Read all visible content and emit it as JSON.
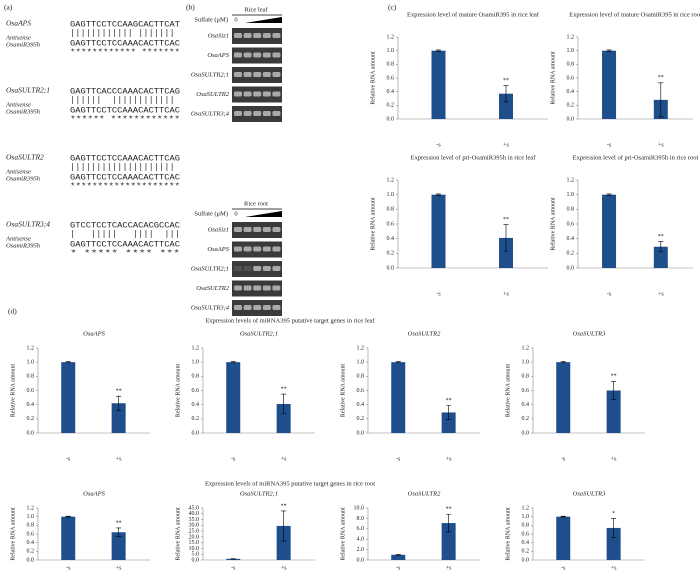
{
  "panel_a": {
    "label": "(a)",
    "alignments": [
      {
        "gene": "OsaAPS",
        "target": "GAGTTCCTCCAAGCACTTCAT",
        "probe_label_1": "Antisense",
        "probe_label_2": "OsamiR395h",
        "antisense": "GAGTTCCTCCAAACACTTCAC",
        "match": "************ ******* "
      },
      {
        "gene": "OsaSULTR2;1",
        "target": "GAGTTCACCCAAACACTTCAG",
        "probe_label_1": "Antisense",
        "probe_label_2": "OsamiR395h",
        "antisense": "GAGTTCCTCCAAACACTTCAC",
        "match": "******  ************ "
      },
      {
        "gene": "OsaSULTR2",
        "target": "GAGTTCCTCCAAACACTTCAG",
        "probe_label_1": "Antisense",
        "probe_label_2": "OsamiR395h",
        "antisense": "GAGTTCCTCCAAACACTTCAC",
        "match": "******************** "
      },
      {
        "gene": "OsaSULTR3;4",
        "target": "GTCCTCCTCACCACACGCCAC",
        "probe_label_1": "Antisense",
        "probe_label_2": "OsamiR395h",
        "antisense": "GAGTTCCTCCAAACACTTCAC",
        "match": "*   *****   ****  ***"
      }
    ]
  },
  "panel_b": {
    "label": "(b)",
    "leaf": {
      "title": "Rice leaf",
      "sulfate_label": "Sulfate (μM)",
      "zero": "0",
      "genes": [
        "OsaSiz1",
        "OsaAPS",
        "OsaSULTR2;1",
        "OsaSULTR2",
        "OsaSULTR3;4"
      ]
    },
    "root": {
      "title": "Rice root",
      "sulfate_label": "Sulfate (μM)",
      "zero": "0",
      "genes": [
        "OsaSiz1",
        "OsaAPS",
        "OsaSULTR2;1",
        "OsaSULTR2",
        "OsaSULTR3;4"
      ]
    }
  },
  "panel_c": {
    "label": "(c)"
  },
  "panel_d": {
    "label": "(d)",
    "leaf_title": "Expression levels of miRNA395 putative target genes in rice leaf",
    "root_title": "Expression levels of miRNA395 putative target genes in rice root"
  },
  "chart_data": [
    {
      "type": "bar",
      "title": "Expression level of mature OsamiR395 in rice leaf",
      "ylabel": "Relative RNA amount",
      "categories": [
        "-s",
        "+s"
      ],
      "values": [
        1.0,
        0.37
      ],
      "errors": [
        0.01,
        0.12
      ],
      "annotation": "**",
      "color": "#1f4e8c",
      "ylim": [
        0,
        1.2
      ],
      "yticks": [
        {
          "value": 0,
          "label": "0.0"
        },
        {
          "value": 0.2,
          "label": "0.2"
        },
        {
          "value": 0.4,
          "label": "0.4"
        },
        {
          "value": 0.6,
          "label": "0.6"
        },
        {
          "value": 0.8,
          "label": "0.8"
        },
        {
          "value": 1,
          "label": "1.0"
        },
        {
          "value": 1.2,
          "label": "1.2"
        }
      ]
    },
    {
      "type": "bar",
      "title": "Expression level of mature OsamiR395 in rice root",
      "ylabel": "Relative RNA amount",
      "categories": [
        "-s",
        "+s"
      ],
      "values": [
        1.0,
        0.28
      ],
      "errors": [
        0.01,
        0.25
      ],
      "annotation": "**",
      "color": "#1f4e8c",
      "ylim": [
        0,
        1.2
      ],
      "yticks": [
        {
          "value": 0,
          "label": "0.0"
        },
        {
          "value": 0.2,
          "label": "0.2"
        },
        {
          "value": 0.4,
          "label": "0.4"
        },
        {
          "value": 0.6,
          "label": "0.6"
        },
        {
          "value": 0.8,
          "label": "0.8"
        },
        {
          "value": 1,
          "label": "1.0"
        },
        {
          "value": 1.2,
          "label": "1.2"
        }
      ]
    },
    {
      "type": "bar",
      "title": "Expression level of pri-OsamiR395h in rice leaf",
      "ylabel": "Relative RNA amount",
      "categories": [
        "-s",
        "+s"
      ],
      "values": [
        1.0,
        0.41
      ],
      "errors": [
        0.01,
        0.18
      ],
      "annotation": "**",
      "color": "#1f4e8c",
      "ylim": [
        0,
        1.2
      ],
      "yticks": [
        {
          "value": 0,
          "label": "0.0"
        },
        {
          "value": 0.2,
          "label": "0.2"
        },
        {
          "value": 0.4,
          "label": "0.4"
        },
        {
          "value": 0.6,
          "label": "0.6"
        },
        {
          "value": 0.8,
          "label": "0.8"
        },
        {
          "value": 1,
          "label": "1.0"
        },
        {
          "value": 1.2,
          "label": "1.2"
        }
      ]
    },
    {
      "type": "bar",
      "title": "Expression level of pri-OsamiR395h in rice root",
      "ylabel": "Relative RNA amount",
      "categories": [
        "-s",
        "+s"
      ],
      "values": [
        1.0,
        0.29
      ],
      "errors": [
        0.01,
        0.07
      ],
      "annotation": "**",
      "color": "#1f4e8c",
      "ylim": [
        0,
        1.2
      ],
      "yticks": [
        {
          "value": 0,
          "label": "0.0"
        },
        {
          "value": 0.2,
          "label": "0.2"
        },
        {
          "value": 0.4,
          "label": "0.4"
        },
        {
          "value": 0.6,
          "label": "0.6"
        },
        {
          "value": 0.8,
          "label": "0.8"
        },
        {
          "value": 1,
          "label": "1.0"
        },
        {
          "value": 1.2,
          "label": "1.2"
        }
      ]
    },
    {
      "type": "bar",
      "title": "OsaAPS",
      "ylabel": "Relative RNA amount",
      "categories": [
        "-s",
        "+s"
      ],
      "values": [
        1.0,
        0.42
      ],
      "errors": [
        0.01,
        0.1
      ],
      "annotation": "**",
      "color": "#1f4e8c",
      "ylim": [
        0,
        1.2
      ],
      "yticks": [
        {
          "value": 0,
          "label": "0.0"
        },
        {
          "value": 0.2,
          "label": "0.2"
        },
        {
          "value": 0.4,
          "label": "0.4"
        },
        {
          "value": 0.6,
          "label": "0.6"
        },
        {
          "value": 0.8,
          "label": "0.8"
        },
        {
          "value": 1,
          "label": "1.0"
        },
        {
          "value": 1.2,
          "label": "1.2"
        }
      ]
    },
    {
      "type": "bar",
      "title": "OsaSULTR2;1",
      "ylabel": "Relative RNA amount",
      "categories": [
        "-s",
        "+s"
      ],
      "values": [
        1.0,
        0.41
      ],
      "errors": [
        0.01,
        0.14
      ],
      "annotation": "**",
      "color": "#1f4e8c",
      "ylim": [
        0,
        1.2
      ],
      "yticks": [
        {
          "value": 0,
          "label": "0.0"
        },
        {
          "value": 0.2,
          "label": "0.2"
        },
        {
          "value": 0.4,
          "label": "0.4"
        },
        {
          "value": 0.6,
          "label": "0.6"
        },
        {
          "value": 0.8,
          "label": "0.8"
        },
        {
          "value": 1,
          "label": "1.0"
        },
        {
          "value": 1.2,
          "label": "1.2"
        }
      ]
    },
    {
      "type": "bar",
      "title": "OsaSULTR2",
      "ylabel": "Relative RNA amount",
      "categories": [
        "-s",
        "+s"
      ],
      "values": [
        1.0,
        0.29
      ],
      "errors": [
        0.01,
        0.1
      ],
      "annotation": "**",
      "color": "#1f4e8c",
      "ylim": [
        0,
        1.2
      ],
      "yticks": [
        {
          "value": 0,
          "label": "0.0"
        },
        {
          "value": 0.2,
          "label": "0.2"
        },
        {
          "value": 0.4,
          "label": "0.4"
        },
        {
          "value": 0.6,
          "label": "0.6"
        },
        {
          "value": 0.8,
          "label": "0.8"
        },
        {
          "value": 1,
          "label": "1.0"
        },
        {
          "value": 1.2,
          "label": "1.2"
        }
      ]
    },
    {
      "type": "bar",
      "title": "OsaSULTR3",
      "ylabel": "Relative RNA amount",
      "categories": [
        "-s",
        "+s"
      ],
      "values": [
        1.0,
        0.6
      ],
      "errors": [
        0.01,
        0.13
      ],
      "annotation": "**",
      "color": "#1f4e8c",
      "ylim": [
        0,
        1.2
      ],
      "yticks": [
        {
          "value": 0,
          "label": "0.0"
        },
        {
          "value": 0.2,
          "label": "0.2"
        },
        {
          "value": 0.4,
          "label": "0.4"
        },
        {
          "value": 0.6,
          "label": "0.6"
        },
        {
          "value": 0.8,
          "label": "0.8"
        },
        {
          "value": 1,
          "label": "1.0"
        },
        {
          "value": 1.2,
          "label": "1.2"
        }
      ]
    },
    {
      "type": "bar",
      "title": "OsaAPS",
      "ylabel": "Relative RNA amount",
      "categories": [
        "-s",
        "+s"
      ],
      "values": [
        1.0,
        0.64
      ],
      "errors": [
        0.01,
        0.1
      ],
      "annotation": "**",
      "color": "#1f4e8c",
      "ylim": [
        0,
        1.2
      ],
      "yticks": [
        {
          "value": 0,
          "label": "0.0"
        },
        {
          "value": 0.2,
          "label": "0.2"
        },
        {
          "value": 0.4,
          "label": "0.4"
        },
        {
          "value": 0.6,
          "label": "0.6"
        },
        {
          "value": 0.8,
          "label": "0.8"
        },
        {
          "value": 1,
          "label": "1.0"
        },
        {
          "value": 1.2,
          "label": "1.2"
        }
      ]
    },
    {
      "type": "bar",
      "title": "OsaSULTR2;1",
      "ylabel": "Relative RNA amount",
      "categories": [
        "-s",
        "+s"
      ],
      "values": [
        1.0,
        29.5
      ],
      "errors": [
        0.2,
        13
      ],
      "annotation": "**",
      "color": "#1f4e8c",
      "ylim": [
        0,
        45
      ],
      "yticks": [
        {
          "value": 0,
          "label": "0.0"
        },
        {
          "value": 5,
          "label": "5.0"
        },
        {
          "value": 10,
          "label": "10.0"
        },
        {
          "value": 15,
          "label": "15.0"
        },
        {
          "value": 20,
          "label": "20.0"
        },
        {
          "value": 25,
          "label": "25.0"
        },
        {
          "value": 30,
          "label": "30.0"
        },
        {
          "value": 35,
          "label": "35.0"
        },
        {
          "value": 40,
          "label": "40.0"
        },
        {
          "value": 45,
          "label": "45.0"
        }
      ]
    },
    {
      "type": "bar",
      "title": "OsaSULTR2",
      "ylabel": "Relative RNA amount",
      "categories": [
        "-s",
        "+s"
      ],
      "values": [
        1.0,
        7.1
      ],
      "errors": [
        0.05,
        1.7
      ],
      "annotation": "**",
      "color": "#1f4e8c",
      "ylim": [
        0,
        10
      ],
      "yticks": [
        {
          "value": 0,
          "label": "0.0"
        },
        {
          "value": 2,
          "label": "2.0"
        },
        {
          "value": 4,
          "label": "4.0"
        },
        {
          "value": 6,
          "label": "6.0"
        },
        {
          "value": 8,
          "label": "8.0"
        },
        {
          "value": 10,
          "label": "10.0"
        }
      ]
    },
    {
      "type": "bar",
      "title": "OsaSULTR3",
      "ylabel": "Relative RNA amount",
      "categories": [
        "-s",
        "+s"
      ],
      "values": [
        1.0,
        0.74
      ],
      "errors": [
        0.01,
        0.22
      ],
      "annotation": "*",
      "color": "#1f4e8c",
      "ylim": [
        0,
        1.2
      ],
      "yticks": [
        {
          "value": 0,
          "label": "0.0"
        },
        {
          "value": 0.2,
          "label": "0.2"
        },
        {
          "value": 0.4,
          "label": "0.4"
        },
        {
          "value": 0.6,
          "label": "0.6"
        },
        {
          "value": 0.8,
          "label": "0.8"
        },
        {
          "value": 1,
          "label": "1.0"
        },
        {
          "value": 1.2,
          "label": "1.2"
        }
      ]
    }
  ]
}
